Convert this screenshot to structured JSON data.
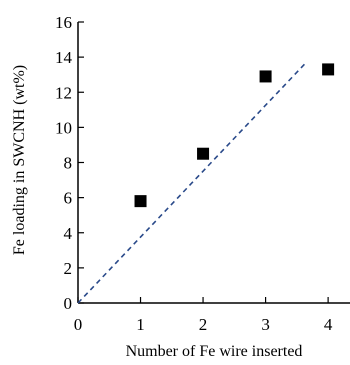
{
  "chart_data": {
    "type": "scatter",
    "title": "",
    "xlabel": "Number of Fe wire inserted",
    "ylabel": "Fe loading in SWCNH (wt%)",
    "xlim": [
      0,
      4.35
    ],
    "ylim": [
      0,
      16
    ],
    "xticks": [
      0,
      1,
      2,
      3,
      4
    ],
    "yticks": [
      0,
      2,
      4,
      6,
      8,
      10,
      12,
      14,
      16
    ],
    "grid": false,
    "legend": "none",
    "series": [
      {
        "marker": "square",
        "color": "#000000",
        "points": [
          {
            "x": 1,
            "y": 5.8
          },
          {
            "x": 2,
            "y": 8.5
          },
          {
            "x": 3,
            "y": 12.9
          },
          {
            "x": 4,
            "y": 13.3
          }
        ]
      }
    ],
    "reference_line": {
      "style": "dashed",
      "color": "#2a4a8a",
      "points": [
        {
          "x": 0,
          "y": 0
        },
        {
          "x": 3.65,
          "y": 13.7
        }
      ]
    }
  }
}
